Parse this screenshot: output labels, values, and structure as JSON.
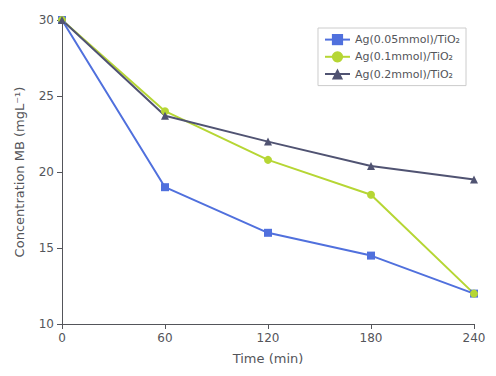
{
  "chart_data": {
    "type": "line",
    "xlabel": "Time (min)",
    "ylabel": "Concentration MB (mgL⁻¹)",
    "x": [
      0,
      60,
      120,
      180,
      240
    ],
    "series": [
      {
        "name": "Ag(0.05mmol)/TiO₂",
        "marker": "square",
        "values": [
          30,
          19.0,
          16.0,
          14.5,
          12.0
        ]
      },
      {
        "name": "Ag(0.1mmol)/TiO₂",
        "marker": "circle",
        "values": [
          30,
          24.0,
          20.8,
          18.5,
          12.0
        ]
      },
      {
        "name": "Ag(0.2mmol)/TiO₂",
        "marker": "triangle",
        "values": [
          30,
          23.7,
          22.0,
          20.4,
          19.5
        ]
      }
    ],
    "xlim": [
      0,
      240
    ],
    "xticks": [
      0,
      60,
      120,
      180,
      240
    ],
    "ylim": [
      10,
      30
    ],
    "yticks": [
      10,
      15,
      20,
      25,
      30
    ],
    "grid": false,
    "legend": "upper right"
  }
}
